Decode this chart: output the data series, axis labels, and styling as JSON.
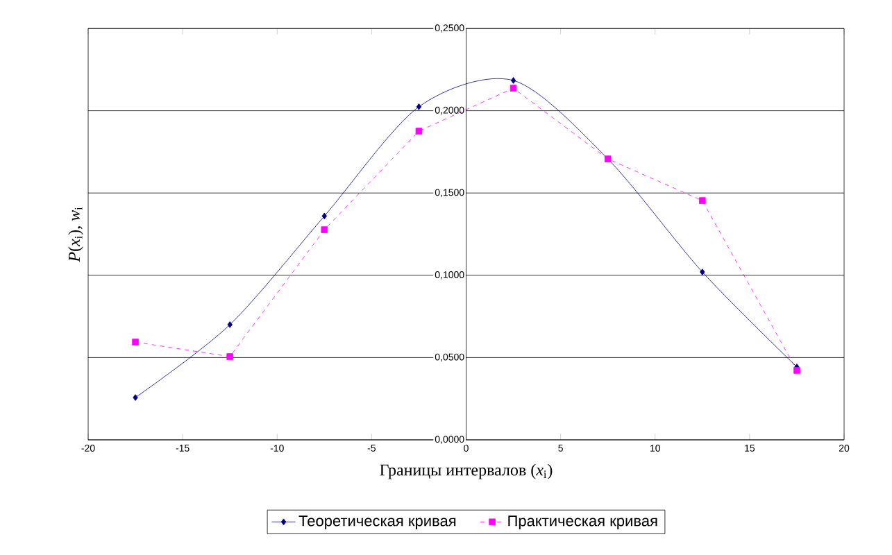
{
  "chart_data": {
    "type": "line",
    "xlabel": "Границы интервалов (*x*$_{i}$)",
    "ylabel": "*P*(*x*$_{i}$), *w*$_{i}$",
    "x": [
      -17.5,
      -12.5,
      -7.5,
      -2.5,
      2.5,
      7.5,
      12.5,
      17.5
    ],
    "series": [
      {
        "name": "Теоретическая кривая",
        "color": "#000080",
        "marker": "diamond",
        "line_style": "solid",
        "values": [
          0.0257,
          0.07,
          0.136,
          0.2024,
          0.2184,
          0.1707,
          0.102,
          0.0443
        ]
      },
      {
        "name": "Практическая кривая",
        "color": "#ff00ff",
        "marker": "square",
        "line_style": "dashed",
        "values": [
          0.0594,
          0.0506,
          0.1277,
          0.1876,
          0.2137,
          0.1707,
          0.1454,
          0.0422
        ]
      }
    ],
    "xlim": [
      -20,
      20
    ],
    "xticks": [
      -20,
      -15,
      -10,
      -5,
      0,
      5,
      10,
      15,
      20
    ],
    "ylim": [
      0,
      0.25
    ],
    "yticks": [
      {
        "value": 0,
        "label": "0,0000"
      },
      {
        "value": 0.05,
        "label": "0,0500"
      },
      {
        "value": 0.1,
        "label": "0,1000"
      },
      {
        "value": 0.15,
        "label": "0,1500"
      },
      {
        "value": 0.2,
        "label": "0,2000"
      },
      {
        "value": 0.25,
        "label": "0,2500"
      }
    ],
    "grid": "y",
    "legend": "bottom"
  }
}
